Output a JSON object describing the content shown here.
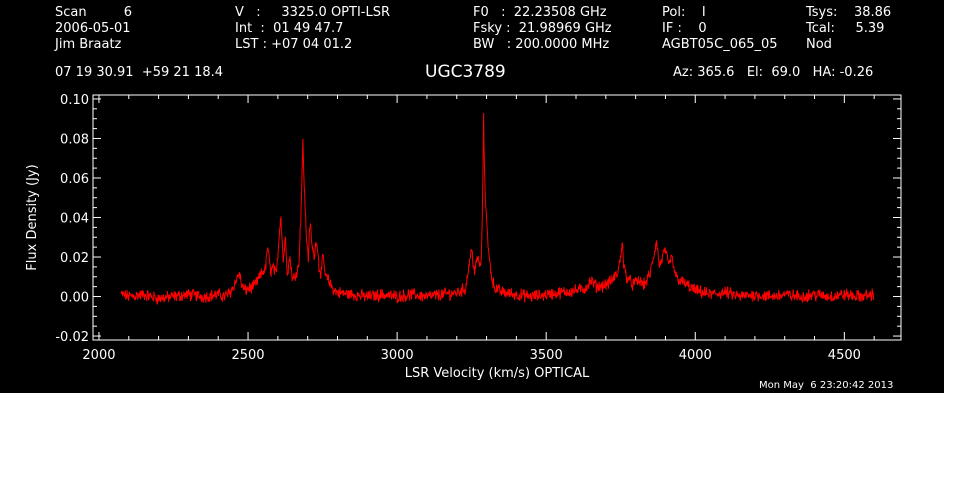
{
  "header": {
    "col1": [
      "Scan         6",
      "2006-05-01",
      "Jim Braatz"
    ],
    "col2": [
      "V   :     3325.0 OPTI-LSR",
      "Int  :  01 49 47.7",
      "LST : +07 04 01.2"
    ],
    "col3": [
      "F0   :  22.23508 GHz",
      "Fsky :  21.98969 GHz",
      "BW   : 200.0000 MHz"
    ],
    "col4": [
      "Pol:    I",
      "IF :    0",
      "AGBT05C_065_05"
    ],
    "col5": [
      "Tsys:    38.86",
      "Tcal:     5.39",
      "Nod"
    ],
    "coords": "07 19 30.91  +59 21 18.4",
    "source": "UGC3789",
    "azel": "Az: 365.6   El:  69.0   HA: -0.26",
    "timestamp": "Mon May  6 23:20:42 2013"
  },
  "colors": {
    "background": "#000000",
    "axes": "#ffffff",
    "trace": "#ff0000"
  },
  "chart_data": {
    "type": "line",
    "title": "UGC3789",
    "xlabel": "LSR Velocity (km/s) OPTICAL",
    "ylabel": "Flux Density (Jy)",
    "xlim": [
      1980,
      4690
    ],
    "ylim": [
      -0.022,
      0.102
    ],
    "xticks": [
      2000,
      2500,
      3000,
      3500,
      4000,
      4500
    ],
    "xtick_labels": [
      "2000",
      "2500",
      "3000",
      "3500",
      "4000",
      "4500"
    ],
    "yticks": [
      -0.02,
      0.0,
      0.02,
      0.04,
      0.06,
      0.08,
      0.1
    ],
    "ytick_labels": [
      "-0.02",
      "0.00",
      "0.02",
      "0.04",
      "0.06",
      "0.08",
      "0.10"
    ],
    "grid": false,
    "series": [
      {
        "x": [
          2075,
          2100,
          2150,
          2200,
          2250,
          2300,
          2350,
          2400,
          2420,
          2440,
          2460,
          2470,
          2480,
          2490,
          2500,
          2520,
          2540,
          2560,
          2565,
          2575,
          2585,
          2595,
          2600,
          2610,
          2618,
          2625,
          2632,
          2640,
          2650,
          2660,
          2670,
          2678,
          2684,
          2690,
          2696,
          2702,
          2708,
          2715,
          2722,
          2730,
          2738,
          2745,
          2752,
          2760,
          2770,
          2780,
          2790,
          2800,
          2850,
          2900,
          2950,
          3000,
          3050,
          3100,
          3150,
          3200,
          3230,
          3240,
          3250,
          3255,
          3260,
          3270,
          3280,
          3285,
          3290,
          3295,
          3300,
          3305,
          3310,
          3320,
          3330,
          3340,
          3360,
          3400,
          3450,
          3500,
          3550,
          3600,
          3630,
          3650,
          3670,
          3700,
          3720,
          3740,
          3750,
          3755,
          3760,
          3770,
          3790,
          3810,
          3830,
          3850,
          3860,
          3870,
          3880,
          3890,
          3900,
          3910,
          3920,
          3935,
          3950,
          3980,
          4000,
          4050,
          4100,
          4150,
          4200,
          4250,
          4300,
          4350,
          4400,
          4450,
          4500,
          4550,
          4600
        ],
        "y": [
          0.001,
          0.0,
          0.001,
          -0.001,
          0.0,
          0.001,
          0.0,
          0.001,
          0.0,
          0.002,
          0.008,
          0.012,
          0.005,
          0.003,
          0.004,
          0.005,
          0.01,
          0.015,
          0.026,
          0.013,
          0.015,
          0.01,
          0.022,
          0.042,
          0.018,
          0.03,
          0.012,
          0.02,
          0.008,
          0.012,
          0.015,
          0.045,
          0.078,
          0.05,
          0.03,
          0.02,
          0.037,
          0.025,
          0.02,
          0.03,
          0.015,
          0.012,
          0.02,
          0.01,
          0.008,
          0.005,
          0.003,
          0.002,
          0.001,
          0.0,
          0.001,
          0.0,
          0.001,
          0.0,
          0.001,
          0.002,
          0.004,
          0.015,
          0.024,
          0.018,
          0.012,
          0.02,
          0.014,
          0.03,
          0.09,
          0.05,
          0.042,
          0.025,
          0.018,
          0.008,
          0.004,
          0.003,
          0.002,
          0.001,
          0.0,
          0.001,
          0.002,
          0.003,
          0.004,
          0.008,
          0.005,
          0.006,
          0.008,
          0.012,
          0.02,
          0.029,
          0.015,
          0.01,
          0.006,
          0.008,
          0.006,
          0.012,
          0.02,
          0.028,
          0.015,
          0.02,
          0.024,
          0.015,
          0.02,
          0.01,
          0.008,
          0.005,
          0.003,
          0.001,
          0.002,
          0.0,
          0.001,
          0.0,
          0.001,
          0.0,
          0.001,
          0.0,
          0.001,
          0.0,
          0.001
        ]
      }
    ]
  }
}
